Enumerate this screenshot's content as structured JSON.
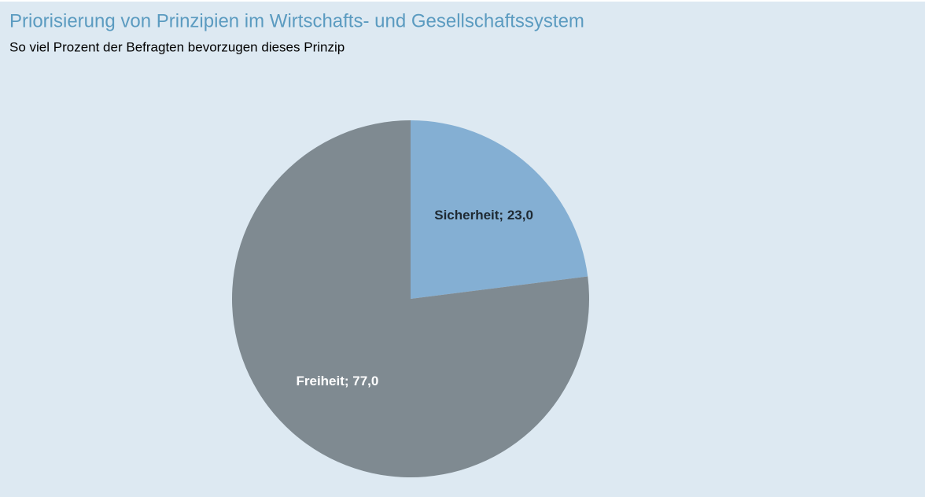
{
  "chart_data": {
    "type": "pie",
    "title": "Priorisierung von Prinzipien im Wirtschafts- und Gesellschaftssystem",
    "subtitle": "So viel Prozent der Befragten bevorzugen dieses Prinzip",
    "values": [
      23,
      77
    ],
    "value_labels": [
      "Sicherheit; 23,0",
      "Freiheit; 77,0"
    ],
    "colors": [
      "#84afd3",
      "#7f8a91"
    ]
  }
}
